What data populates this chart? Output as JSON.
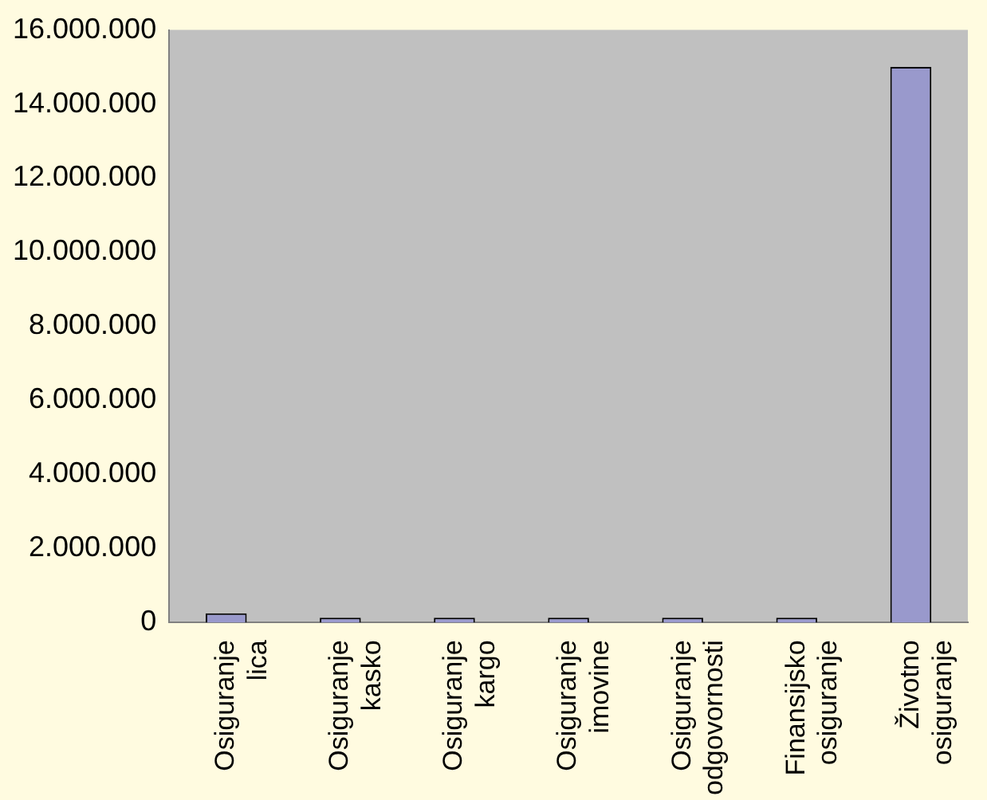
{
  "chart_data": {
    "type": "bar",
    "categories": [
      "Osiguranje lica",
      "Osiguranje kasko",
      "Osiguranje kargo",
      "Osiguranje imovine",
      "Osiguranje odgovornosti",
      "Finansijsko osiguranje",
      "Životno osiguranje"
    ],
    "values": [
      250000,
      0,
      0,
      0,
      0,
      0,
      15000000
    ],
    "color": "#9999cc",
    "ylim": [
      0,
      16000000
    ],
    "yticks": [
      {
        "value": 0,
        "label": "0"
      },
      {
        "value": 2000000,
        "label": "2.000.000"
      },
      {
        "value": 4000000,
        "label": "4.000.000"
      },
      {
        "value": 6000000,
        "label": "6.000.000"
      },
      {
        "value": 8000000,
        "label": "8.000.000"
      },
      {
        "value": 10000000,
        "label": "10.000.000"
      },
      {
        "value": 12000000,
        "label": "12.000.000"
      },
      {
        "value": 14000000,
        "label": "14.000.000"
      },
      {
        "value": 16000000,
        "label": "16.000.000"
      }
    ],
    "grid": false,
    "legend": false
  }
}
